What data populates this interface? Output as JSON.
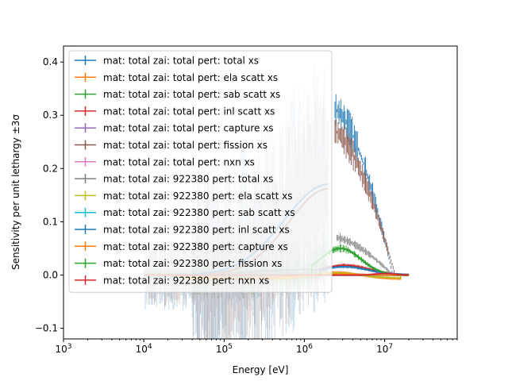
{
  "chart_data": {
    "type": "line",
    "xlabel": "Energy [eV]",
    "ylabel": "Sensitivity per unit lethargy ±3σ",
    "xscale": "log",
    "xlim": [
      1000,
      80000000
    ],
    "ylim": [
      -0.12,
      0.43
    ],
    "x_ticks": [
      {
        "value": 1000,
        "base": "10",
        "exp": "3"
      },
      {
        "value": 10000,
        "base": "10",
        "exp": "4"
      },
      {
        "value": 100000,
        "base": "10",
        "exp": "5"
      },
      {
        "value": 1000000,
        "base": "10",
        "exp": "6"
      },
      {
        "value": 10000000,
        "base": "10",
        "exp": "7"
      }
    ],
    "y_ticks": [
      {
        "value": -0.1,
        "label": "−0.1"
      },
      {
        "value": 0.0,
        "label": "0.0"
      },
      {
        "value": 0.1,
        "label": "0.1"
      },
      {
        "value": 0.2,
        "label": "0.2"
      },
      {
        "value": 0.3,
        "label": "0.3"
      },
      {
        "value": 0.4,
        "label": "0.4"
      }
    ],
    "grid": false,
    "legend_position": "upper left",
    "series": [
      {
        "name": "mat: total zai: total pert: total xs",
        "color": "#1f77b4",
        "profile": "total",
        "scale": 0.31
      },
      {
        "name": "mat: total zai: total pert: ela scatt xs",
        "color": "#ff7f0e",
        "profile": "ela",
        "scale": 0.012
      },
      {
        "name": "mat: total zai: total pert: sab scatt xs",
        "color": "#2ca02c",
        "profile": "zero",
        "scale": 0.0
      },
      {
        "name": "mat: total zai: total pert: inl scatt xs",
        "color": "#d62728",
        "profile": "inl",
        "scale": 0.018
      },
      {
        "name": "mat: total zai: total pert: capture xs",
        "color": "#9467bd",
        "profile": "capture",
        "scale": 0.01
      },
      {
        "name": "mat: total zai: total pert: fission xs",
        "color": "#8c564b",
        "profile": "fission",
        "scale": 0.27
      },
      {
        "name": "mat: total zai: total pert: nxn xs",
        "color": "#e377c2",
        "profile": "nxn",
        "scale": 0.004
      },
      {
        "name": "mat: total zai: 922380 pert: total xs",
        "color": "#7f7f7f",
        "profile": "u238total",
        "scale": 0.07
      },
      {
        "name": "mat: total zai: 922380 pert: ela scatt xs",
        "color": "#bcbd22",
        "profile": "ela",
        "scale": 0.01
      },
      {
        "name": "mat: total zai: 922380 pert: sab scatt xs",
        "color": "#17becf",
        "profile": "zero",
        "scale": 0.0
      },
      {
        "name": "mat: total zai: 922380 pert: inl scatt xs",
        "color": "#1f77b4",
        "profile": "inl",
        "scale": 0.016
      },
      {
        "name": "mat: total zai: 922380 pert: capture xs",
        "color": "#ff7f0e",
        "profile": "capture",
        "scale": 0.008
      },
      {
        "name": "mat: total zai: 922380 pert: fission xs",
        "color": "#2ca02c",
        "profile": "u238fission",
        "scale": 0.05
      },
      {
        "name": "mat: total zai: 922380 pert: nxn xs",
        "color": "#d62728",
        "profile": "nxn",
        "scale": 0.003
      }
    ]
  }
}
